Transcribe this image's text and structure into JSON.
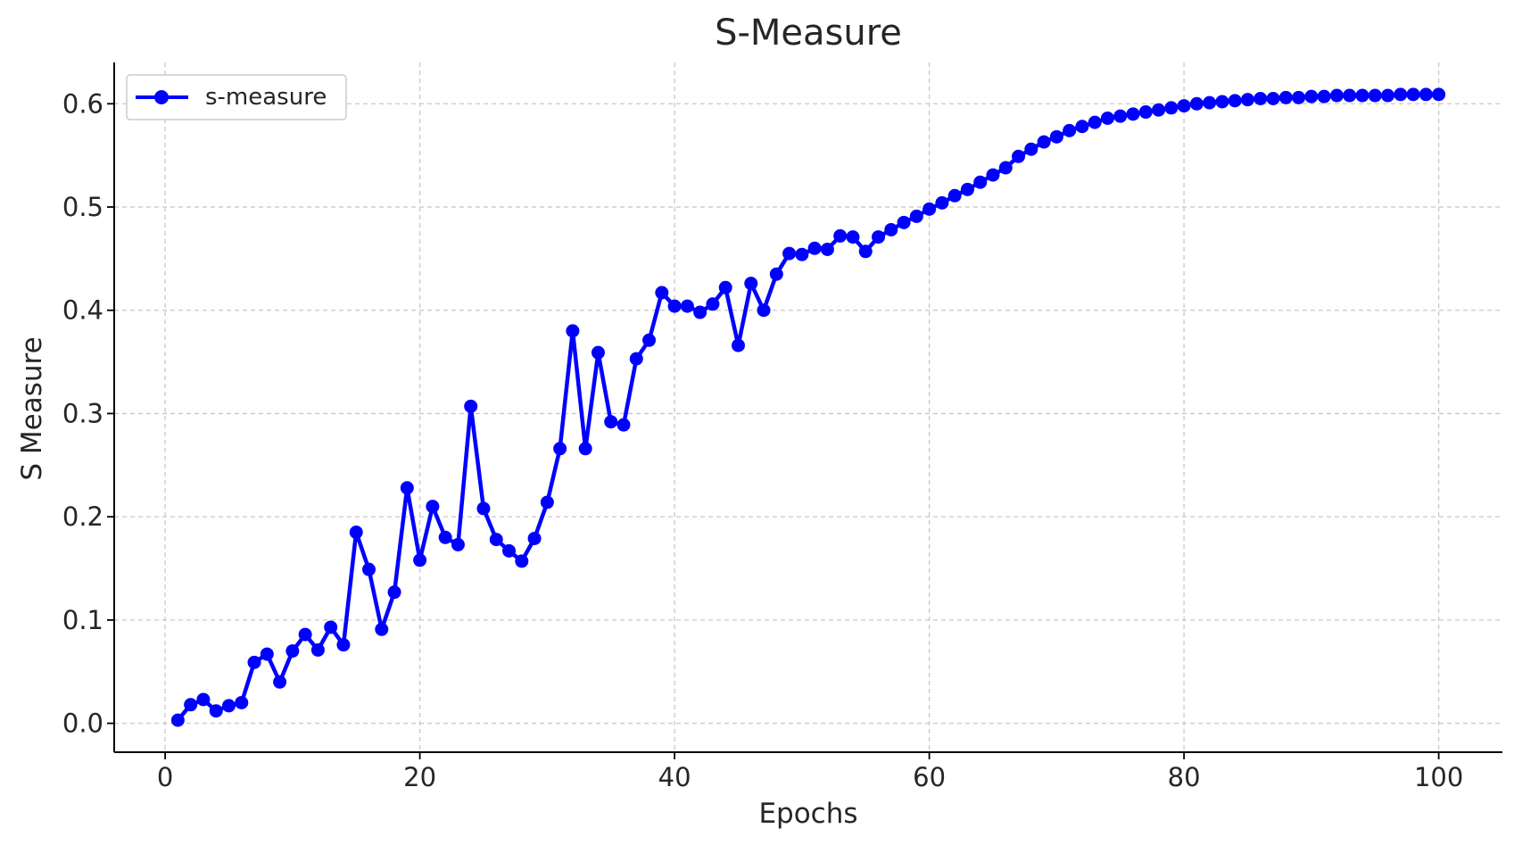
{
  "chart_data": {
    "type": "line",
    "title": "S-Measure",
    "xlabel": "Epochs",
    "ylabel": "S Measure",
    "xlim": [
      -4,
      105
    ],
    "ylim": [
      -0.028,
      0.64
    ],
    "xticks": [
      0,
      20,
      40,
      60,
      80,
      100
    ],
    "yticks": [
      0.0,
      0.1,
      0.2,
      0.3,
      0.4,
      0.5,
      0.6
    ],
    "ytick_labels": [
      "0.0",
      "0.1",
      "0.2",
      "0.3",
      "0.4",
      "0.5",
      "0.6"
    ],
    "grid": true,
    "legend_position": "top-left",
    "series": [
      {
        "name": "s-measure",
        "color": "#0000ff",
        "marker": "circle",
        "x": [
          1,
          2,
          3,
          4,
          5,
          6,
          7,
          8,
          9,
          10,
          11,
          12,
          13,
          14,
          15,
          16,
          17,
          18,
          19,
          20,
          21,
          22,
          23,
          24,
          25,
          26,
          27,
          28,
          29,
          30,
          31,
          32,
          33,
          34,
          35,
          36,
          37,
          38,
          39,
          40,
          41,
          42,
          43,
          44,
          45,
          46,
          47,
          48,
          49,
          50,
          51,
          52,
          53,
          54,
          55,
          56,
          57,
          58,
          59,
          60,
          61,
          62,
          63,
          64,
          65,
          66,
          67,
          68,
          69,
          70,
          71,
          72,
          73,
          74,
          75,
          76,
          77,
          78,
          79,
          80,
          81,
          82,
          83,
          84,
          85,
          86,
          87,
          88,
          89,
          90,
          91,
          92,
          93,
          94,
          95,
          96,
          97,
          98,
          99,
          100
        ],
        "values": [
          0.003,
          0.018,
          0.023,
          0.012,
          0.017,
          0.02,
          0.059,
          0.067,
          0.04,
          0.07,
          0.086,
          0.071,
          0.093,
          0.076,
          0.185,
          0.149,
          0.091,
          0.127,
          0.228,
          0.158,
          0.21,
          0.18,
          0.173,
          0.307,
          0.208,
          0.178,
          0.167,
          0.157,
          0.179,
          0.214,
          0.266,
          0.38,
          0.266,
          0.359,
          0.292,
          0.289,
          0.353,
          0.371,
          0.417,
          0.404,
          0.404,
          0.398,
          0.406,
          0.422,
          0.366,
          0.426,
          0.4,
          0.435,
          0.455,
          0.454,
          0.46,
          0.459,
          0.472,
          0.471,
          0.457,
          0.471,
          0.478,
          0.485,
          0.491,
          0.498,
          0.504,
          0.511,
          0.517,
          0.524,
          0.531,
          0.538,
          0.549,
          0.556,
          0.563,
          0.568,
          0.574,
          0.578,
          0.582,
          0.586,
          0.588,
          0.59,
          0.592,
          0.594,
          0.596,
          0.598,
          0.6,
          0.601,
          0.602,
          0.603,
          0.604,
          0.605,
          0.605,
          0.606,
          0.606,
          0.607,
          0.607,
          0.608,
          0.608,
          0.608,
          0.608,
          0.608,
          0.609,
          0.609,
          0.609,
          0.609
        ]
      }
    ]
  },
  "colors": {
    "series": "#0000ff",
    "grid": "#c8c8c8",
    "axis": "#000000",
    "text": "#262626"
  }
}
